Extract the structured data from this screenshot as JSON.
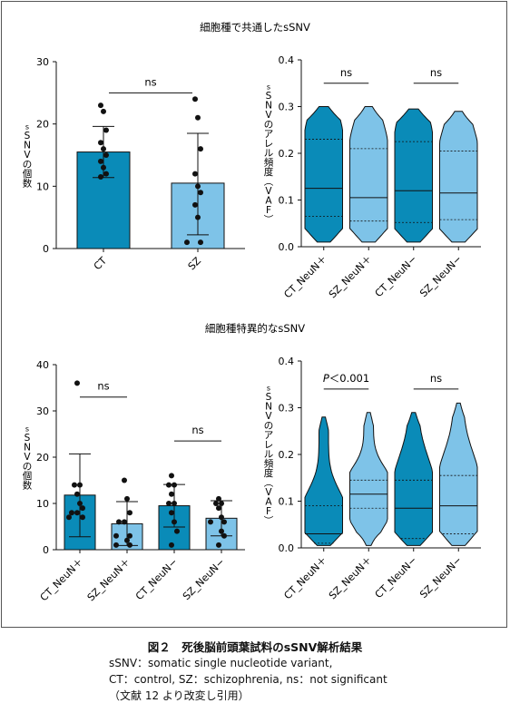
{
  "figure": {
    "caption_title": "図２　死後脳前頭葉試料のsSNV解析結果",
    "caption_lines": [
      "sSNV：somatic single nucleotide variant,",
      "CT：control, SZ：schizophrenia, ns：not significant",
      "（文献 12 より改変し引用）"
    ]
  },
  "colors": {
    "dark": "#0a8bb8",
    "light": "#7ec3e8",
    "stroke": "#111111"
  },
  "chart_data": [
    {
      "section_title": "細胞種で共通したsSNV",
      "type": "bar",
      "ylabel": "sSNVの個数",
      "ylim": [
        0,
        30
      ],
      "yticks": [
        "0",
        "10",
        "20",
        "30"
      ],
      "categories": [
        "CT",
        "SZ"
      ],
      "values": [
        15.5,
        10.5
      ],
      "error": [
        [
          11.4,
          19.6
        ],
        [
          2.2,
          18.5
        ]
      ],
      "points": [
        [
          23,
          22,
          19,
          17,
          16,
          15,
          14,
          13,
          12,
          11.5
        ],
        [
          24,
          21,
          16,
          12,
          10,
          9,
          7,
          5,
          1,
          1
        ]
      ],
      "annotations": [
        {
          "text": "ns",
          "from": 0,
          "to": 1
        }
      ]
    },
    {
      "type": "violin",
      "ylabel": "sSNVのアレル頻度（VAF）",
      "ylim": [
        0,
        0.4
      ],
      "yticks": [
        "0.0",
        "0.1",
        "0.2",
        "0.3",
        "0.4"
      ],
      "categories": [
        "CT_NeuN＋",
        "SZ_NeuN＋",
        "CT_NeuN−",
        "SZ_NeuN−"
      ],
      "ranges": [
        [
          0.01,
          0.3
        ],
        [
          0.01,
          0.3
        ],
        [
          0.01,
          0.295
        ],
        [
          0.01,
          0.29
        ]
      ],
      "quartiles": [
        [
          0.065,
          0.125,
          0.23
        ],
        [
          0.055,
          0.105,
          0.21
        ],
        [
          0.052,
          0.12,
          0.225
        ],
        [
          0.058,
          0.115,
          0.205
        ]
      ],
      "annotations": [
        {
          "text": "ns",
          "from": 0,
          "to": 1
        },
        {
          "text": "ns",
          "from": 2,
          "to": 3
        }
      ]
    },
    {
      "section_title": "細胞種特異的なsSNV",
      "type": "bar",
      "ylabel": "sSNVの個数",
      "ylim": [
        0,
        40
      ],
      "yticks": [
        "0",
        "10",
        "20",
        "30",
        "40"
      ],
      "categories": [
        "CT_NeuN＋",
        "SZ_NeuN＋",
        "CT_NeuN−",
        "SZ_NeuN−"
      ],
      "values": [
        11.8,
        5.6,
        9.5,
        6.8
      ],
      "error": [
        [
          2.8,
          20.7
        ],
        [
          0.9,
          10.4
        ],
        [
          4.9,
          14.1
        ],
        [
          3.0,
          10.6
        ]
      ],
      "points": [
        [
          36,
          14,
          14,
          12,
          10,
          9,
          8,
          8,
          7,
          7
        ],
        [
          15,
          11,
          8,
          6,
          6,
          3,
          3,
          2,
          1,
          1
        ],
        [
          16,
          14,
          14,
          12,
          10,
          10,
          8,
          6,
          4,
          1
        ],
        [
          11,
          10,
          10,
          9,
          7,
          6,
          6,
          4,
          3,
          1
        ]
      ],
      "annotations": [
        {
          "text": "ns",
          "from": 0,
          "to": 1
        },
        {
          "text": "ns",
          "from": 2,
          "to": 3
        }
      ]
    },
    {
      "type": "violin",
      "ylabel": "sSNVのアレル頻度（VAF）",
      "ylim": [
        0,
        0.4
      ],
      "yticks": [
        "0.0",
        "0.1",
        "0.2",
        "0.3",
        "0.4"
      ],
      "categories": [
        "CT_NeuN＋",
        "SZ_NeuN＋",
        "CT_NeuN−",
        "SZ_NeuN−"
      ],
      "ranges": [
        [
          0.005,
          0.28
        ],
        [
          0.005,
          0.29
        ],
        [
          0.005,
          0.29
        ],
        [
          0.005,
          0.31
        ]
      ],
      "quartiles": [
        [
          0.01,
          0.03,
          0.09
        ],
        [
          0.085,
          0.115,
          0.145
        ],
        [
          0.02,
          0.085,
          0.145
        ],
        [
          0.03,
          0.09,
          0.155
        ]
      ],
      "annotations": [
        {
          "text": "P＜0.001",
          "italic_prefix": "P",
          "from": 0,
          "to": 1
        },
        {
          "text": "ns",
          "from": 2,
          "to": 3
        }
      ]
    }
  ]
}
